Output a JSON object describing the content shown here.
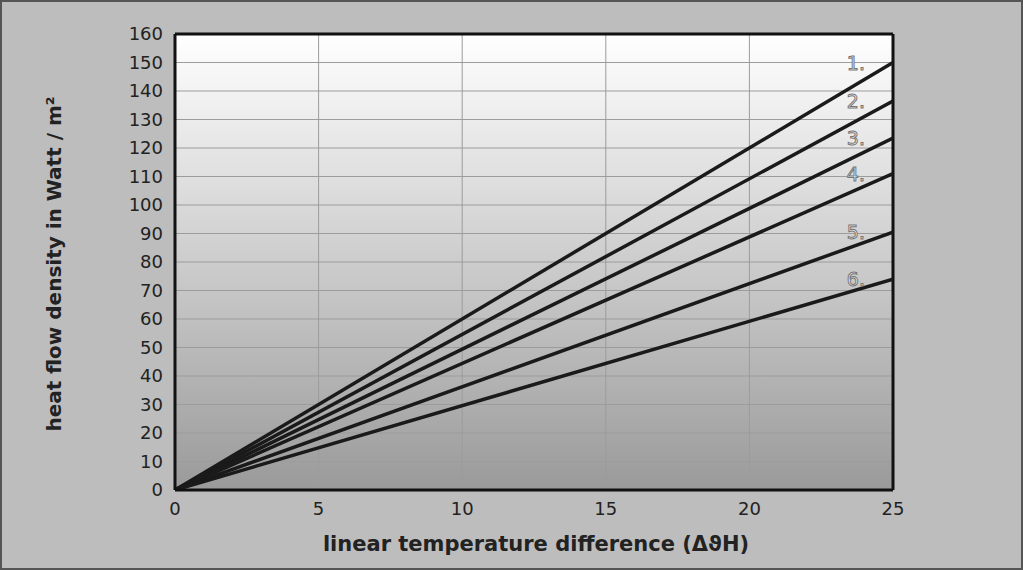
{
  "chart_data": {
    "type": "line",
    "x_label": "linear temperature difference (ΔϑH)",
    "y_label": "heat flow density in Watt / m²",
    "x": [
      0,
      25
    ],
    "series": [
      {
        "name": "1.",
        "color": "#1a1a1a",
        "values": [
          0,
          150
        ]
      },
      {
        "name": "2.",
        "color": "#1a1a1a",
        "values": [
          0,
          136.5
        ]
      },
      {
        "name": "3.",
        "color": "#1a1a1a",
        "values": [
          0,
          123.5
        ]
      },
      {
        "name": "4.",
        "color": "#1a1a1a",
        "values": [
          0,
          111
        ]
      },
      {
        "name": "5.",
        "color": "#1a1a1a",
        "values": [
          0,
          90.5
        ]
      },
      {
        "name": "6.",
        "color": "#1a1a1a",
        "values": [
          0,
          74
        ]
      }
    ],
    "xlim": [
      0,
      25
    ],
    "xticks": [
      0,
      5,
      10,
      15,
      20,
      25
    ],
    "ylim": [
      0,
      160
    ],
    "yticks": [
      0,
      10,
      20,
      30,
      40,
      50,
      60,
      70,
      80,
      90,
      100,
      110,
      120,
      130,
      140,
      150,
      160
    ],
    "grid": true
  }
}
